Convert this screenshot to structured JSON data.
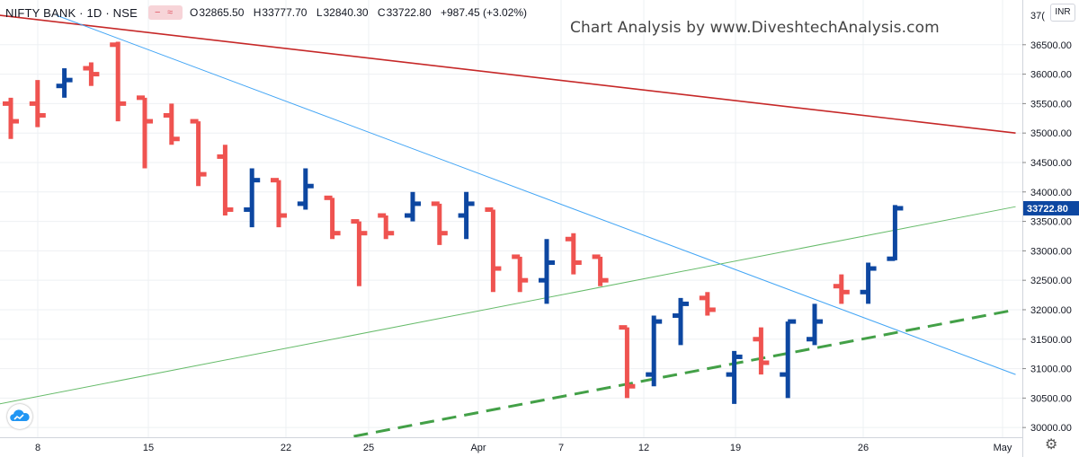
{
  "header": {
    "symbol": "NIFTY BANK · 1D · NSE",
    "ohlc": [
      {
        "k": "O",
        "v": "32865.50"
      },
      {
        "k": "H",
        "v": "33777.70"
      },
      {
        "k": "L",
        "v": "32840.30"
      },
      {
        "k": "C",
        "v": "33722.80"
      }
    ],
    "change": "+987.45 (+3.02%)"
  },
  "watermark": "Chart Analysis by www.DiveshtechAnalysis.com",
  "currency": "INR",
  "colors": {
    "up": "#0d47a1",
    "down": "#ef5350",
    "bg": "#ffffff",
    "grid": "#eef0f3",
    "axis_text": "#131722",
    "last_price_bg": "#0d47a1"
  },
  "chart_data": {
    "type": "ohlc",
    "title": "",
    "xlabel": "",
    "ylabel": "",
    "ylim": [
      29850,
      37000
    ],
    "y_ticks": [
      30000,
      30500,
      31000,
      31500,
      32000,
      32500,
      33000,
      33500,
      34000,
      34500,
      35000,
      35500,
      36000,
      36500
    ],
    "y_tick_labels": [
      "30000.00",
      "30500.00",
      "31000.00",
      "31500.00",
      "32000.00",
      "32500.00",
      "33000.00",
      "33500.00",
      "34000.00",
      "34500.00",
      "35000.00",
      "35500.00",
      "36000.00",
      "36500.00"
    ],
    "y_top_label": "37(",
    "x_labels": [
      "8",
      "15",
      "22",
      "25",
      "Apr",
      "7",
      "12",
      "19",
      "26",
      "May"
    ],
    "last_price": 33722.8,
    "last_price_label": "33722.80",
    "bars": [
      {
        "o": 35500,
        "h": 35600,
        "l": 34900,
        "c": 35200
      },
      {
        "o": 35500,
        "h": 35900,
        "l": 35100,
        "c": 35300
      },
      {
        "o": 35800,
        "h": 36100,
        "l": 35600,
        "c": 35900
      },
      {
        "o": 36100,
        "h": 36200,
        "l": 35800,
        "c": 36000
      },
      {
        "o": 36500,
        "h": 36550,
        "l": 35200,
        "c": 35500
      },
      {
        "o": 35600,
        "h": 35600,
        "l": 34400,
        "c": 35200
      },
      {
        "o": 35300,
        "h": 35500,
        "l": 34800,
        "c": 34900
      },
      {
        "o": 35200,
        "h": 35200,
        "l": 34100,
        "c": 34300
      },
      {
        "o": 34600,
        "h": 34800,
        "l": 33600,
        "c": 33700
      },
      {
        "o": 33700,
        "h": 34400,
        "l": 33400,
        "c": 34200
      },
      {
        "o": 34200,
        "h": 34200,
        "l": 33400,
        "c": 33600
      },
      {
        "o": 33800,
        "h": 34400,
        "l": 33700,
        "c": 34100
      },
      {
        "o": 33900,
        "h": 33900,
        "l": 33200,
        "c": 33300
      },
      {
        "o": 33500,
        "h": 33500,
        "l": 32400,
        "c": 33300
      },
      {
        "o": 33600,
        "h": 33600,
        "l": 33200,
        "c": 33300
      },
      {
        "o": 33600,
        "h": 34000,
        "l": 33500,
        "c": 33800
      },
      {
        "o": 33800,
        "h": 33800,
        "l": 33100,
        "c": 33300
      },
      {
        "o": 33600,
        "h": 34000,
        "l": 33200,
        "c": 33800
      },
      {
        "o": 33700,
        "h": 33700,
        "l": 32300,
        "c": 32700
      },
      {
        "o": 32900,
        "h": 32900,
        "l": 32300,
        "c": 32500
      },
      {
        "o": 32500,
        "h": 33200,
        "l": 32100,
        "c": 32800
      },
      {
        "o": 33200,
        "h": 33300,
        "l": 32600,
        "c": 32800
      },
      {
        "o": 32900,
        "h": 32900,
        "l": 32400,
        "c": 32500
      },
      {
        "o": 31700,
        "h": 31700,
        "l": 30500,
        "c": 30700
      },
      {
        "o": 30900,
        "h": 31900,
        "l": 30700,
        "c": 31800
      },
      {
        "o": 31900,
        "h": 32200,
        "l": 31400,
        "c": 32100
      },
      {
        "o": 32200,
        "h": 32300,
        "l": 31900,
        "c": 32000
      },
      {
        "o": 30900,
        "h": 31300,
        "l": 30400,
        "c": 31200
      },
      {
        "o": 31500,
        "h": 31700,
        "l": 30900,
        "c": 31100
      },
      {
        "o": 30900,
        "h": 31800,
        "l": 30500,
        "c": 31800
      },
      {
        "o": 31500,
        "h": 32100,
        "l": 31400,
        "c": 31800
      },
      {
        "o": 32400,
        "h": 32600,
        "l": 32100,
        "c": 32300
      },
      {
        "o": 32300,
        "h": 32800,
        "l": 32100,
        "c": 32700
      },
      {
        "o": 32865.5,
        "h": 33777.7,
        "l": 32840.3,
        "c": 33722.8
      }
    ],
    "trendlines": [
      {
        "name": "",
        "style": "solid",
        "color": "#c62828",
        "width": 1.6,
        "points": [
          [
            -1,
            37030
          ],
          [
            37.5,
            35000
          ]
        ]
      },
      {
        "name": "",
        "style": "solid",
        "color": "#42a5f5",
        "width": 1,
        "points": [
          [
            1.7,
            37000
          ],
          [
            37.5,
            30900
          ]
        ]
      },
      {
        "name": "",
        "style": "solid",
        "color": "#66bb6a",
        "width": 1,
        "points": [
          [
            -1,
            30350
          ],
          [
            37.5,
            33750
          ]
        ]
      },
      {
        "name": "",
        "style": "dashed",
        "color": "#43a047",
        "width": 3,
        "points": [
          [
            12.8,
            29850
          ],
          [
            37.5,
            32000
          ]
        ]
      }
    ],
    "grid": true,
    "legend": "none"
  }
}
